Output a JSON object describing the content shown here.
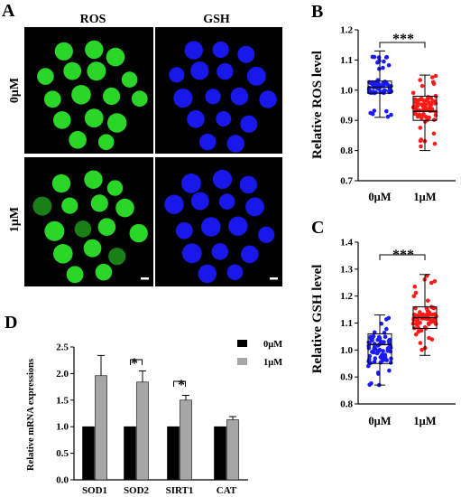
{
  "panels": {
    "A": {
      "label": "A",
      "col_headers": [
        "ROS",
        "GSH"
      ],
      "row_labels": [
        "0μM",
        "1μM"
      ],
      "stain_colors": {
        "ROS": "#2ee82a",
        "GSH": "#1a1aff"
      }
    },
    "B": {
      "label": "B"
    },
    "C": {
      "label": "C"
    },
    "D": {
      "label": "D"
    }
  },
  "chart_data": [
    {
      "id": "B",
      "type": "box",
      "ylabel": "Relative ROS level",
      "categories": [
        "0μM",
        "1μM"
      ],
      "ylim": [
        0.7,
        1.2
      ],
      "yticks": [
        0.7,
        0.8,
        0.9,
        1.0,
        1.1,
        1.2
      ],
      "series": [
        {
          "category": "0μM",
          "color": "#1a1aff",
          "min": 0.91,
          "q1": 0.99,
          "median": 1.01,
          "q3": 1.03,
          "max": 1.13
        },
        {
          "category": "1μM",
          "color": "#ff1a1a",
          "min": 0.8,
          "q1": 0.9,
          "median": 0.93,
          "q3": 0.98,
          "max": 1.05
        }
      ],
      "significance": "***"
    },
    {
      "id": "C",
      "type": "box",
      "ylabel": "Relative GSH level",
      "categories": [
        "0μM",
        "1μM"
      ],
      "ylim": [
        0.8,
        1.4
      ],
      "yticks": [
        0.8,
        0.9,
        1.0,
        1.1,
        1.2,
        1.3,
        1.4
      ],
      "series": [
        {
          "category": "0μM",
          "color": "#1a1aff",
          "min": 0.87,
          "q1": 0.95,
          "median": 1.02,
          "q3": 1.06,
          "max": 1.13
        },
        {
          "category": "1μM",
          "color": "#ff1a1a",
          "min": 0.98,
          "q1": 1.08,
          "median": 1.12,
          "q3": 1.16,
          "max": 1.28
        }
      ],
      "significance": "***"
    },
    {
      "id": "D",
      "type": "bar",
      "ylabel": "Relative mRNA expressions",
      "categories": [
        "SOD1",
        "SOD2",
        "SIRT1",
        "CAT"
      ],
      "ylim": [
        0,
        2.5
      ],
      "yticks": [
        "0.0",
        "0.5",
        "1.0",
        "1.5",
        "2.0",
        "2.5"
      ],
      "series": [
        {
          "name": "0μM",
          "color": "#000000",
          "values": [
            1.0,
            1.0,
            1.0,
            1.0
          ],
          "errors": [
            0.0,
            0.0,
            0.0,
            0.0
          ]
        },
        {
          "name": "1μM",
          "color": "#a6a6a6",
          "values": [
            1.96,
            1.84,
            1.5,
            1.13
          ],
          "errors": [
            0.38,
            0.21,
            0.09,
            0.06
          ]
        }
      ],
      "significance": [
        {
          "category": "SOD2",
          "mark": "*"
        },
        {
          "category": "SIRT1",
          "mark": "*"
        }
      ],
      "legend_position": "top-right"
    }
  ]
}
